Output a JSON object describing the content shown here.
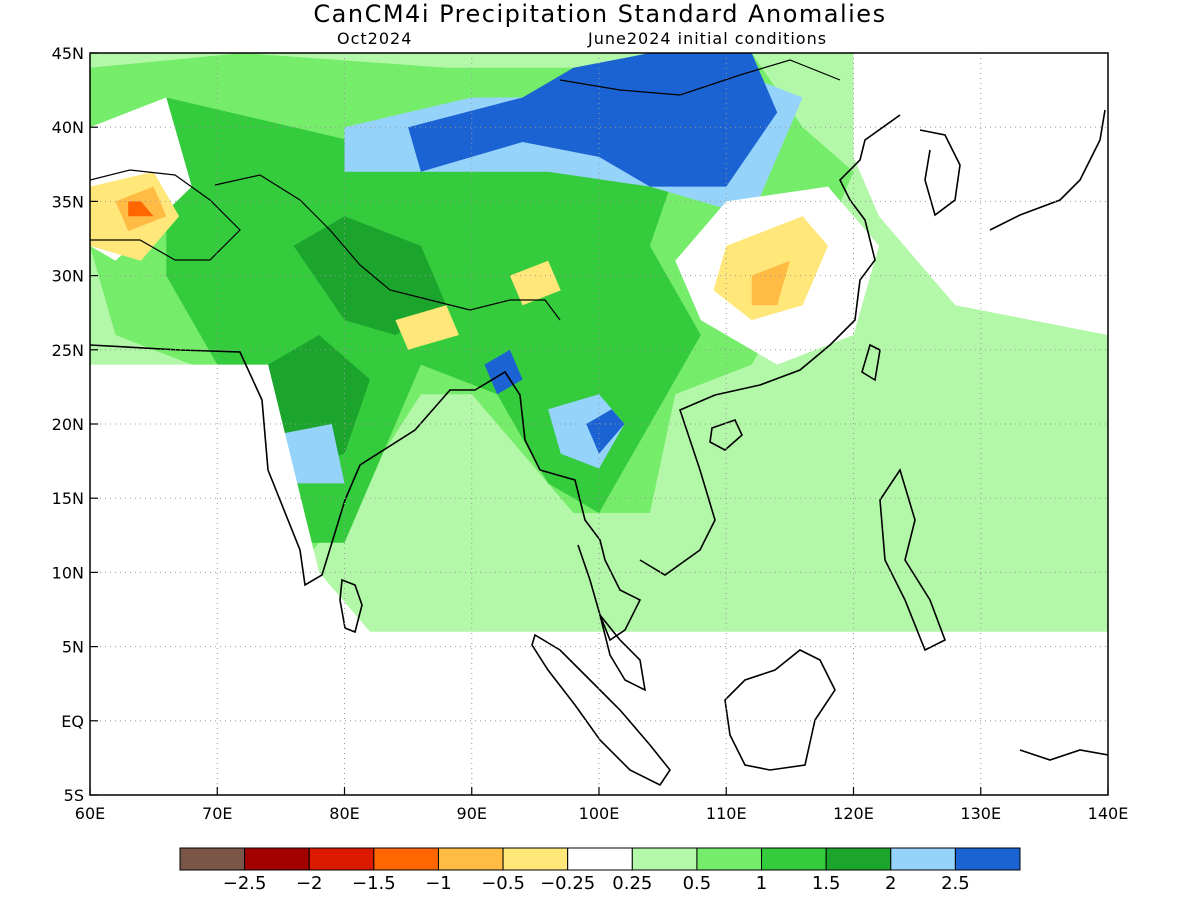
{
  "header": {
    "title": "CanCM4i Precipitation Standard Anomalies",
    "valid_month": "Oct2024",
    "init": "June2024 initial conditions"
  },
  "map": {
    "lon_range": [
      60,
      140
    ],
    "lat_range": [
      -5,
      45
    ],
    "lon_ticks": [
      "60E",
      "70E",
      "80E",
      "90E",
      "100E",
      "110E",
      "120E",
      "130E",
      "140E"
    ],
    "lat_ticks": [
      "45N",
      "40N",
      "35N",
      "30N",
      "25N",
      "20N",
      "15N",
      "10N",
      "5N",
      "EQ",
      "5S"
    ],
    "grid": "dotted"
  },
  "colorbar": {
    "colors": [
      "#7a5648",
      "#a30000",
      "#dc1a00",
      "#ff6600",
      "#ffbb44",
      "#ffe77a",
      "#ffffff",
      "#b3f7a8",
      "#75ed6a",
      "#34cb3c",
      "#1ca52d",
      "#96d3fb",
      "#1b63d3"
    ],
    "labels": [
      "−2.5",
      "−2",
      "−1.5",
      "−1",
      "−0.5",
      "−0.25",
      "0.25",
      "0.5",
      "1",
      "1.5",
      "2",
      "2.5"
    ]
  },
  "anomaly_regions": [
    {
      "level": "0.5",
      "color": "#b3f7a8",
      "lonlat": [
        [
          60,
          45
        ],
        [
          140,
          45
        ],
        [
          140,
          -5
        ],
        [
          60,
          -5
        ]
      ]
    },
    {
      "level": "1",
      "color": "#75ed6a",
      "lonlat": [
        [
          60,
          44
        ],
        [
          72,
          45
        ],
        [
          88,
          44
        ],
        [
          100,
          44
        ],
        [
          112,
          45
        ],
        [
          116,
          40
        ],
        [
          120,
          37
        ],
        [
          118,
          33
        ],
        [
          112,
          24
        ],
        [
          106,
          22
        ],
        [
          104,
          14
        ],
        [
          98,
          14
        ],
        [
          90,
          22
        ],
        [
          86,
          22
        ],
        [
          80,
          14
        ],
        [
          76,
          10
        ],
        [
          72,
          18
        ],
        [
          68,
          24
        ],
        [
          62,
          26
        ],
        [
          60,
          32
        ]
      ]
    },
    {
      "level": "1.5",
      "color": "#34cb3c",
      "lonlat": [
        [
          66,
          42
        ],
        [
          76,
          40
        ],
        [
          86,
          38
        ],
        [
          100,
          40
        ],
        [
          106,
          37
        ],
        [
          104,
          32
        ],
        [
          108,
          26
        ],
        [
          104,
          20
        ],
        [
          100,
          14
        ],
        [
          96,
          16
        ],
        [
          92,
          22
        ],
        [
          86,
          24
        ],
        [
          80,
          12
        ],
        [
          76,
          12
        ],
        [
          73,
          18
        ],
        [
          70,
          24
        ],
        [
          66,
          30
        ]
      ]
    },
    {
      "level": "2",
      "color": "#1ca52d",
      "lonlat": [
        [
          76,
          32
        ],
        [
          80,
          34
        ],
        [
          86,
          32
        ],
        [
          88,
          28
        ],
        [
          84,
          26
        ],
        [
          80,
          27
        ]
      ]
    },
    {
      "level": "2",
      "color": "#1ca52d",
      "lonlat": [
        [
          74,
          24
        ],
        [
          78,
          26
        ],
        [
          82,
          23
        ],
        [
          80,
          18
        ],
        [
          76,
          17
        ],
        [
          74,
          20
        ]
      ]
    },
    {
      "level": "2",
      "color": "#96d3fb",
      "lonlat": [
        [
          80,
          40
        ],
        [
          90,
          42
        ],
        [
          100,
          42
        ],
        [
          110,
          44
        ],
        [
          116,
          42
        ],
        [
          112,
          34
        ],
        [
          104,
          36
        ],
        [
          96,
          37
        ],
        [
          88,
          37
        ],
        [
          80,
          37
        ]
      ]
    },
    {
      "level": "2",
      "color": "#96d3fb",
      "lonlat": [
        [
          73,
          19
        ],
        [
          79,
          20
        ],
        [
          80,
          16
        ],
        [
          74,
          16
        ]
      ]
    },
    {
      "level": "2",
      "color": "#96d3fb",
      "lonlat": [
        [
          96,
          21
        ],
        [
          100,
          22
        ],
        [
          102,
          20
        ],
        [
          100,
          17
        ],
        [
          97,
          18
        ]
      ]
    },
    {
      "level": "2.5",
      "color": "#1b63d3",
      "lonlat": [
        [
          85,
          40
        ],
        [
          94,
          42
        ],
        [
          98,
          44
        ],
        [
          104,
          45
        ],
        [
          112,
          45
        ],
        [
          114,
          41
        ],
        [
          110,
          36
        ],
        [
          104,
          36
        ],
        [
          100,
          38
        ],
        [
          94,
          39
        ],
        [
          86,
          37
        ]
      ]
    },
    {
      "level": "2.5",
      "color": "#1b63d3",
      "lonlat": [
        [
          91,
          24
        ],
        [
          93,
          25
        ],
        [
          94,
          23
        ],
        [
          92,
          22
        ]
      ]
    },
    {
      "level": "2.5",
      "color": "#1b63d3",
      "lonlat": [
        [
          99,
          20
        ],
        [
          101,
          21
        ],
        [
          102,
          20
        ],
        [
          100,
          18
        ]
      ]
    },
    {
      "level": "0.25",
      "color": "#ffffff",
      "lonlat": [
        [
          60,
          40
        ],
        [
          66,
          42
        ],
        [
          68,
          36
        ],
        [
          62,
          31
        ],
        [
          60,
          32
        ]
      ]
    },
    {
      "level": "0.25",
      "color": "#ffffff",
      "lonlat": [
        [
          110,
          35
        ],
        [
          118,
          36
        ],
        [
          122,
          32
        ],
        [
          120,
          26
        ],
        [
          114,
          24
        ],
        [
          108,
          27
        ],
        [
          106,
          31
        ]
      ]
    },
    {
      "level": "0.25",
      "color": "#ffffff",
      "lonlat": [
        [
          120,
          45
        ],
        [
          140,
          45
        ],
        [
          140,
          26
        ],
        [
          128,
          28
        ],
        [
          122,
          34
        ],
        [
          120,
          38
        ]
      ]
    },
    {
      "level": "0.25",
      "color": "#ffffff",
      "lonlat": [
        [
          66,
          24
        ],
        [
          74,
          24
        ],
        [
          78,
          10
        ],
        [
          82,
          6
        ],
        [
          140,
          6
        ],
        [
          140,
          -5
        ],
        [
          60,
          -5
        ],
        [
          60,
          24
        ]
      ]
    },
    {
      "level": "-0.25",
      "color": "#ffe77a",
      "lonlat": [
        [
          60,
          36
        ],
        [
          65,
          37
        ],
        [
          67,
          34
        ],
        [
          64,
          31
        ],
        [
          60,
          32
        ]
      ]
    },
    {
      "level": "-0.25",
      "color": "#ffe77a",
      "lonlat": [
        [
          110,
          32
        ],
        [
          116,
          34
        ],
        [
          118,
          32
        ],
        [
          116,
          28
        ],
        [
          112,
          27
        ],
        [
          109,
          29
        ]
      ]
    },
    {
      "level": "-0.25",
      "color": "#ffe77a",
      "lonlat": [
        [
          84,
          27
        ],
        [
          88,
          28
        ],
        [
          89,
          26
        ],
        [
          85,
          25
        ]
      ]
    },
    {
      "level": "-0.25",
      "color": "#ffe77a",
      "lonlat": [
        [
          93,
          30
        ],
        [
          96,
          31
        ],
        [
          97,
          29
        ],
        [
          94,
          28
        ]
      ]
    },
    {
      "level": "-0.5",
      "color": "#ffbb44",
      "lonlat": [
        [
          62,
          35
        ],
        [
          65,
          36
        ],
        [
          66,
          34
        ],
        [
          63,
          33
        ]
      ]
    },
    {
      "level": "-0.5",
      "color": "#ffbb44",
      "lonlat": [
        [
          112,
          30
        ],
        [
          115,
          31
        ],
        [
          114,
          28
        ],
        [
          112,
          28
        ]
      ]
    },
    {
      "level": "-1",
      "color": "#ff6600",
      "lonlat": [
        [
          63,
          35
        ],
        [
          64,
          35
        ],
        [
          65,
          34
        ],
        [
          63,
          34
        ]
      ]
    }
  ]
}
